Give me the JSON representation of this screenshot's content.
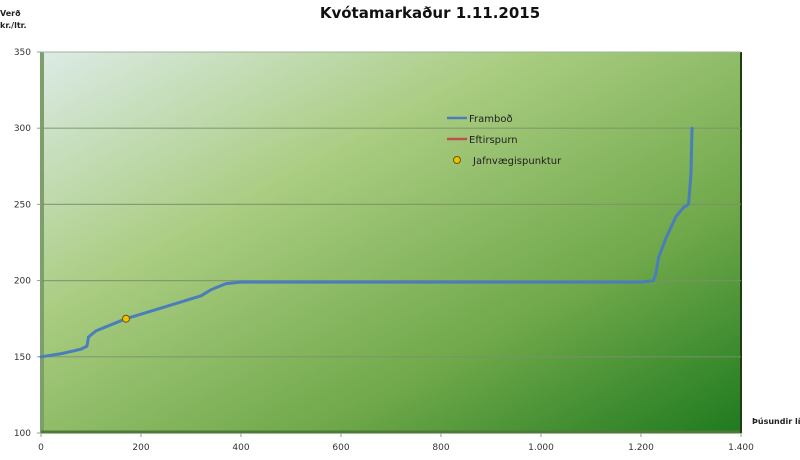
{
  "chart_data": {
    "type": "line",
    "title": "Kvótamarkaður 1.11.2015",
    "ylabel": "Verð\nkr./ltr.",
    "ylabel_lines": [
      "Verð",
      "kr./ltr."
    ],
    "xlabel": "Þúsundir lítra",
    "xlim": [
      0,
      1400
    ],
    "ylim": [
      100,
      350
    ],
    "xticks": [
      "0",
      "200",
      "400",
      "600",
      "800",
      "1.000",
      "1.200",
      "1.400"
    ],
    "yticks": [
      "100",
      "150",
      "200",
      "250",
      "300",
      "350"
    ],
    "grid": {
      "horizontal": true,
      "vertical": false
    },
    "legend_position": "upper-center-right",
    "legend": [
      {
        "name": "Framboð",
        "type": "line",
        "color": "#4a7ebb"
      },
      {
        "name": "Eftirspurn",
        "type": "line",
        "color": "#c0504d"
      },
      {
        "name": "Jafnvægispunktur",
        "type": "marker",
        "color": "#f0c000"
      }
    ],
    "series": [
      {
        "name": "Framboð",
        "color": "#4a7ebb",
        "x": [
          0,
          40,
          80,
          92,
          95,
          110,
          170,
          250,
          320,
          340,
          370,
          400,
          600,
          800,
          1000,
          1200,
          1225,
          1230,
          1235,
          1250,
          1270,
          1285,
          1295,
          1300,
          1302
        ],
        "y": [
          150,
          152,
          155,
          157,
          163,
          167,
          175,
          183,
          190,
          194,
          198,
          199,
          199,
          199,
          199,
          199,
          200,
          205,
          215,
          228,
          242,
          248,
          250,
          270,
          300
        ]
      },
      {
        "name": "Eftirspurn",
        "color": "#c0504d",
        "x": [],
        "y": []
      },
      {
        "name": "Jafnvægispunktur",
        "color": "#f0c000",
        "x": [
          170
        ],
        "y": [
          175
        ]
      }
    ]
  }
}
